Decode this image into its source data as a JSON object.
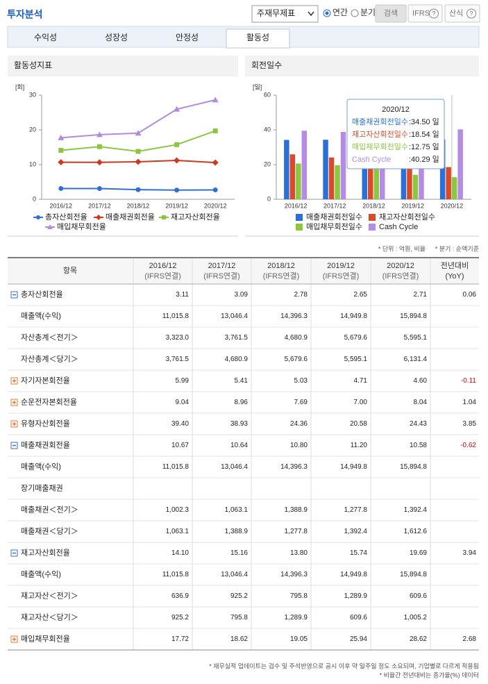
{
  "header": {
    "title": "투자분석",
    "select": "주재무제표",
    "radios": [
      {
        "label": "연간",
        "checked": true
      },
      {
        "label": "분기",
        "checked": false
      }
    ],
    "buttons": [
      "검색",
      "IFRS",
      "산식"
    ]
  },
  "tabs": [
    {
      "label": "수익성",
      "active": false
    },
    {
      "label": "성장성",
      "active": false
    },
    {
      "label": "안정성",
      "active": false
    },
    {
      "label": "활동성",
      "active": true
    }
  ],
  "chart_data": [
    {
      "type": "line",
      "title": "활동성지표",
      "y_unit": "[회]",
      "categories": [
        "2016/12",
        "2017/12",
        "2018/12",
        "2019/12",
        "2020/12"
      ],
      "ylim": [
        0,
        30
      ],
      "yticks": [
        0,
        10,
        20,
        30
      ],
      "series": [
        {
          "name": "총자산회전율",
          "color": "#2f6fd6",
          "marker": "circle",
          "values": [
            3.11,
            3.09,
            2.78,
            2.65,
            2.71
          ]
        },
        {
          "name": "매출채권회전율",
          "color": "#d0371f",
          "marker": "diamond",
          "values": [
            10.67,
            10.64,
            10.8,
            11.2,
            10.58
          ]
        },
        {
          "name": "재고자산회전율",
          "color": "#8cc63f",
          "marker": "square",
          "values": [
            14.1,
            15.16,
            13.8,
            15.74,
            19.69
          ]
        },
        {
          "name": "매입채무회전율",
          "color": "#b18be0",
          "marker": "triangle",
          "values": [
            17.72,
            18.62,
            19.05,
            25.94,
            28.62
          ]
        }
      ]
    },
    {
      "type": "bar",
      "title": "회전일수",
      "y_unit": "[일]",
      "categories": [
        "2016/12",
        "2017/12",
        "2018/12",
        "2019/12",
        "2020/12"
      ],
      "ylim": [
        0,
        60
      ],
      "yticks": [
        0,
        20,
        40,
        60
      ],
      "series": [
        {
          "name": "매출채권회전일수",
          "color": "#2c6fd8",
          "values": [
            34.2,
            34.3,
            33.8,
            32.6,
            34.5
          ]
        },
        {
          "name": "재고자산회전일수",
          "color": "#d84b2a",
          "values": [
            25.9,
            24.1,
            26.4,
            23.2,
            18.54
          ]
        },
        {
          "name": "매입채무회전일수",
          "color": "#8dc63f",
          "values": [
            20.6,
            19.6,
            19.2,
            14.1,
            12.75
          ]
        },
        {
          "name": "Cash Cycle",
          "color": "#b48ce6",
          "values": [
            39.5,
            38.8,
            41.0,
            41.7,
            40.29
          ]
        }
      ],
      "tooltip": {
        "title": "2020/12",
        "items": [
          {
            "name": "매출채권회전일수",
            "text": ":34.50 일"
          },
          {
            "name": "재고자산회전일수",
            "text": ":18.54 일"
          },
          {
            "name": "매입채무회전일수",
            "text": ":12.75 일"
          },
          {
            "name": "Cash Cycle",
            "text": ":40.29 일"
          }
        ]
      }
    }
  ],
  "unit_note": [
    "* 단위 : 억원, 비율",
    "* 분기 : 순액기준"
  ],
  "table": {
    "columns": {
      "item": "항목",
      "periods": [
        {
          "period": "2016/12",
          "basis": "(IFRS연결)"
        },
        {
          "period": "2017/12",
          "basis": "(IFRS연결)"
        },
        {
          "period": "2018/12",
          "basis": "(IFRS연결)"
        },
        {
          "period": "2019/12",
          "basis": "(IFRS연결)"
        },
        {
          "period": "2020/12",
          "basis": "(IFRS연결)"
        }
      ],
      "yoy": [
        "전년대비",
        "(YoY)"
      ]
    },
    "rows": [
      {
        "label": "총자산회전율",
        "toggle": "minus",
        "cells": [
          "3.11",
          "3.09",
          "2.78",
          "2.65",
          "2.71"
        ],
        "yoy": "0.06"
      },
      {
        "label": "매출액(수익)",
        "cells": [
          "11,015.8",
          "13,046.4",
          "14,396.3",
          "14,949.8",
          "15,894.8"
        ],
        "yoy": null
      },
      {
        "label": "자산총계＜전기＞",
        "cells": [
          "3,323.0",
          "3,761.5",
          "4,680.9",
          "5,679.6",
          "5,595.1"
        ],
        "yoy": null
      },
      {
        "label": "자산총계＜당기＞",
        "cells": [
          "3,761.5",
          "4,680.9",
          "5,679.6",
          "5,595.1",
          "6,131.4"
        ],
        "yoy": null
      },
      {
        "label": "자기자본회전율",
        "toggle": "plus",
        "cells": [
          "5.99",
          "5.41",
          "5.03",
          "4.71",
          "4.60"
        ],
        "yoy": "-0.11"
      },
      {
        "label": "순운전자본회전율",
        "toggle": "plus",
        "cells": [
          "9.04",
          "8.96",
          "7.69",
          "7.00",
          "8.04"
        ],
        "yoy": "1.04"
      },
      {
        "label": "유형자산회전율",
        "toggle": "plus",
        "cells": [
          "39.40",
          "38.93",
          "24.36",
          "20.58",
          "24.43"
        ],
        "yoy": "3.85"
      },
      {
        "label": "매출채권회전율",
        "toggle": "minus",
        "cells": [
          "10.67",
          "10.64",
          "10.80",
          "11.20",
          "10.58"
        ],
        "yoy": "-0.62"
      },
      {
        "label": "매출액(수익)",
        "cells": [
          "11,015.8",
          "13,046.4",
          "14,396.3",
          "14,949.8",
          "15,894.8"
        ],
        "yoy": null
      },
      {
        "label": "장기매출채권",
        "cells": [
          null,
          null,
          null,
          null,
          null
        ],
        "yoy": null
      },
      {
        "label": "매출채권＜전기＞",
        "cells": [
          "1,002.3",
          "1,063.1",
          "1,388.9",
          "1,277.8",
          "1,392.4"
        ],
        "yoy": null
      },
      {
        "label": "매출채권＜당기＞",
        "cells": [
          "1,063.1",
          "1,388.9",
          "1,277.8",
          "1,392.4",
          "1,612.6"
        ],
        "yoy": null
      },
      {
        "label": "재고자산회전율",
        "toggle": "minus",
        "cells": [
          "14.10",
          "15.16",
          "13.80",
          "15.74",
          "19.69"
        ],
        "yoy": "3.94"
      },
      {
        "label": "매출액(수익)",
        "cells": [
          "11,015.8",
          "13,046.4",
          "14,396.3",
          "14,949.8",
          "15,894.8"
        ],
        "yoy": null
      },
      {
        "label": "재고자산＜전기＞",
        "cells": [
          "636.9",
          "925.2",
          "795.8",
          "1,289.9",
          "609.6"
        ],
        "yoy": null
      },
      {
        "label": "재고자산＜당기＞",
        "cells": [
          "925.2",
          "795.8",
          "1,289.9",
          "609.6",
          "1,005.2"
        ],
        "yoy": null
      },
      {
        "label": "매입채무회전율",
        "toggle": "plus",
        "cells": [
          "17.72",
          "18.62",
          "19.05",
          "25.94",
          "28.62"
        ],
        "yoy": "2.68"
      }
    ]
  },
  "footnotes": [
    "* 재무실적 업데이트는 검수 및 주석반영으로 공시 이후 약 일주일 정도 소요되며, 기업별로 다르게 적용됨",
    "* 비율간 전년대비는 증가율(%) 데이터"
  ]
}
